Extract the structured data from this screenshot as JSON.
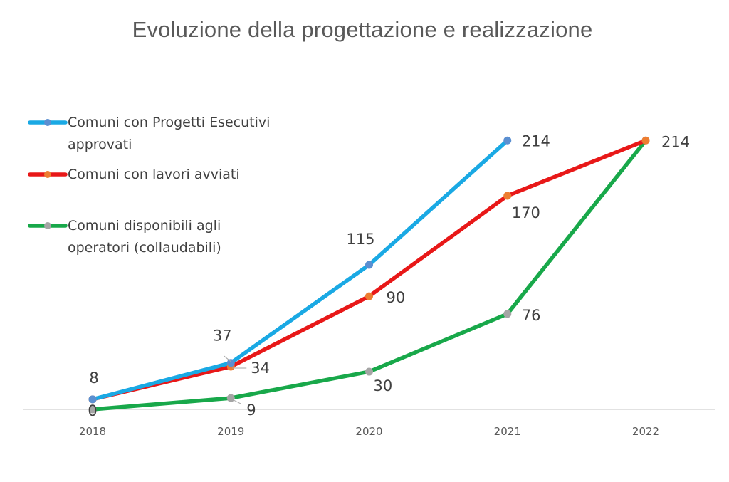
{
  "chart_data": {
    "type": "line",
    "title": "Evoluzione della progettazione e realizzazione",
    "xlabel": "",
    "ylabel": "",
    "x": [
      "2018",
      "2019",
      "2020",
      "2021",
      "2022"
    ],
    "ylim": [
      0,
      250
    ],
    "grid": false,
    "legend_position": "top-left",
    "series": [
      {
        "name": "Comuni con Progetti Esecutivi approvati",
        "name_lines": [
          "Comuni con Progetti Esecutivi",
          "approvati"
        ],
        "color": "#1aa9e4",
        "marker_color": "#5b8fd1",
        "values": [
          8,
          37,
          115,
          214,
          null
        ],
        "labels": [
          "",
          "37",
          "115",
          "214",
          ""
        ]
      },
      {
        "name": "Comuni con lavori avviati",
        "name_lines": [
          "Comuni con lavori avviati"
        ],
        "color": "#e81818",
        "marker_color": "#ed7d31",
        "values": [
          8,
          34,
          90,
          170,
          214
        ],
        "labels": [
          "8",
          "34",
          "90",
          "170",
          ""
        ]
      },
      {
        "name": "Comuni disponibili agli operatori (collaudabili)",
        "name_lines": [
          "Comuni disponibili agli",
          "operatori (collaudabili)"
        ],
        "color": "#18a84a",
        "marker_color": "#a5a5a5",
        "values": [
          0,
          9,
          30,
          76,
          214
        ],
        "labels": [
          "0",
          "9",
          "30",
          "76",
          "214"
        ]
      }
    ]
  }
}
